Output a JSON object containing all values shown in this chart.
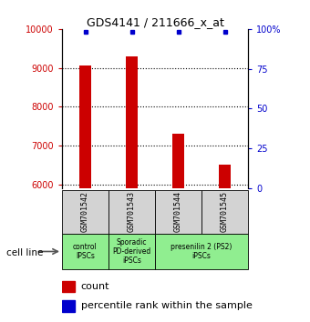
{
  "title": "GDS4141 / 211666_x_at",
  "samples": [
    "GSM701542",
    "GSM701543",
    "GSM701544",
    "GSM701545"
  ],
  "counts": [
    9050,
    9300,
    7300,
    6500
  ],
  "percentile_ranks": [
    98,
    98,
    98,
    98
  ],
  "ylim_left": [
    5900,
    10000
  ],
  "ylim_right": [
    0,
    100
  ],
  "yticks_left": [
    6000,
    7000,
    8000,
    9000,
    10000
  ],
  "yticks_right": [
    0,
    25,
    50,
    75,
    100
  ],
  "bar_color": "#cc0000",
  "dot_color": "#0000cc",
  "bar_width": 0.25,
  "groups": [
    {
      "label": "control\nIPSCs",
      "start": 0,
      "end": 1,
      "color": "#90ee90"
    },
    {
      "label": "Sporadic\nPD-derived\niPSCs",
      "start": 1,
      "end": 2,
      "color": "#90ee90"
    },
    {
      "label": "presenilin 2 (PS2)\niPSCs",
      "start": 2,
      "end": 4,
      "color": "#90ee90"
    }
  ],
  "sample_box_color": "#d3d3d3",
  "legend_count_color": "#cc0000",
  "legend_pct_color": "#0000cc"
}
